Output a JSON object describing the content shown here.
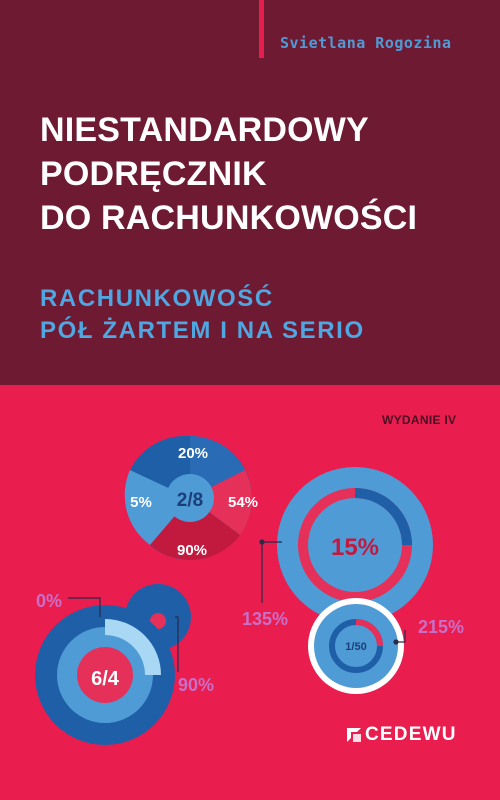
{
  "cover": {
    "author": "Svietlana Rogozina",
    "title_lines": [
      "NIESTANDARDOWY",
      "PODRĘCZNIK",
      "DO RACHUNKOWOŚCI"
    ],
    "subtitle_lines": [
      "RACHUNKOWOŚĆ",
      "PÓŁ ŻARTEM I NA SERIO"
    ],
    "edition": "WYDANIE IV",
    "publisher": "CEDEWU",
    "colors": {
      "top_background": "#6e1a33",
      "bottom_background": "#ea1d4f",
      "blue_accent": "#4f9bd6",
      "dark_blue": "#1f5fa8",
      "purple_label": "#c86fc8"
    }
  },
  "infographic": {
    "top_ring": {
      "center": "2/8",
      "labels": [
        "20%",
        "54%",
        "90%",
        "5%"
      ]
    },
    "right_big_ring": {
      "center": "15%"
    },
    "right_small_ring": {
      "center": "1/50"
    },
    "left_ring": {
      "center": "6/4"
    },
    "callouts": [
      "135%",
      "215%",
      "0%",
      "90%"
    ]
  }
}
